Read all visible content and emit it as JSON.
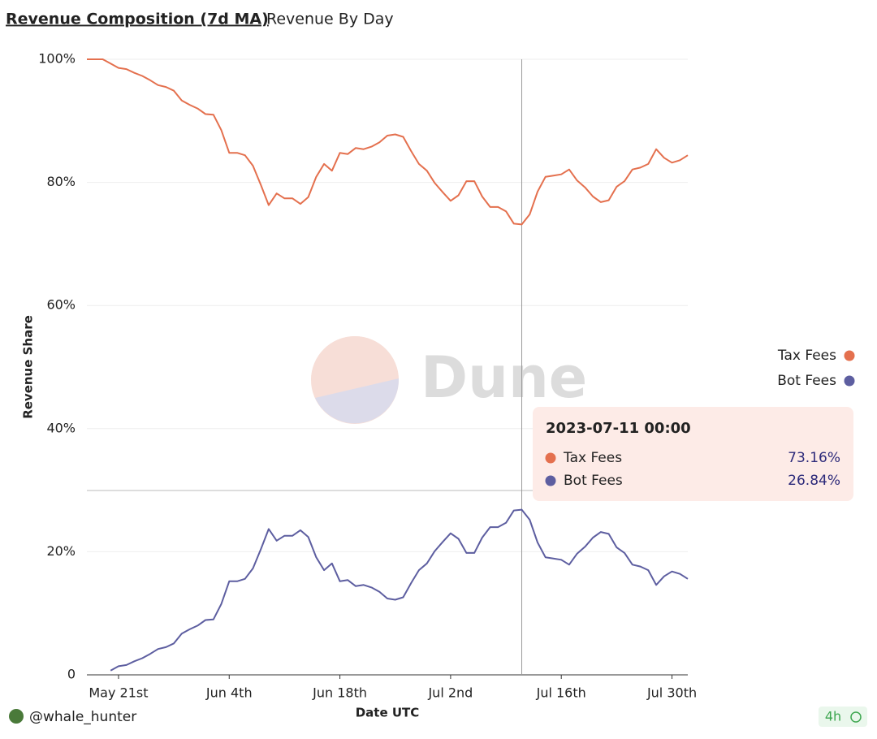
{
  "tabs": [
    "Revenue Composition (7d MA)",
    "Revenue By Day"
  ],
  "chart_data": {
    "type": "line",
    "y_label": "Revenue Share",
    "x_label": "Date UTC",
    "watermark": "Dune",
    "x": [
      "2023-05-17",
      "2023-05-18",
      "2023-05-19",
      "2023-05-20",
      "2023-05-21",
      "2023-05-22",
      "2023-05-23",
      "2023-05-24",
      "2023-05-25",
      "2023-05-26",
      "2023-05-27",
      "2023-05-28",
      "2023-05-29",
      "2023-05-30",
      "2023-05-31",
      "2023-06-01",
      "2023-06-02",
      "2023-06-03",
      "2023-06-04",
      "2023-06-05",
      "2023-06-06",
      "2023-06-07",
      "2023-06-08",
      "2023-06-09",
      "2023-06-10",
      "2023-06-11",
      "2023-06-12",
      "2023-06-13",
      "2023-06-14",
      "2023-06-15",
      "2023-06-16",
      "2023-06-17",
      "2023-06-18",
      "2023-06-19",
      "2023-06-20",
      "2023-06-21",
      "2023-06-22",
      "2023-06-23",
      "2023-06-24",
      "2023-06-25",
      "2023-06-26",
      "2023-06-27",
      "2023-06-28",
      "2023-06-29",
      "2023-06-30",
      "2023-07-01",
      "2023-07-02",
      "2023-07-03",
      "2023-07-04",
      "2023-07-05",
      "2023-07-06",
      "2023-07-07",
      "2023-07-08",
      "2023-07-09",
      "2023-07-10",
      "2023-07-11",
      "2023-07-12",
      "2023-07-13",
      "2023-07-14",
      "2023-07-15",
      "2023-07-16",
      "2023-07-17",
      "2023-07-18",
      "2023-07-19",
      "2023-07-20",
      "2023-07-21",
      "2023-07-22",
      "2023-07-23",
      "2023-07-24",
      "2023-07-25",
      "2023-07-26",
      "2023-07-27",
      "2023-07-28",
      "2023-07-29",
      "2023-07-30",
      "2023-07-31",
      "2023-08-01"
    ],
    "series": [
      {
        "name": "Tax Fees",
        "color": "#e4704e",
        "values": [
          100,
          100,
          100,
          99.3,
          98.6,
          98.4,
          97.8,
          97.3,
          96.6,
          95.8,
          95.5,
          94.9,
          93.3,
          92.6,
          92.0,
          91.1,
          91.0,
          88.5,
          84.8,
          84.8,
          84.4,
          82.7,
          79.6,
          76.3,
          78.2,
          77.4,
          77.4,
          76.5,
          77.6,
          80.9,
          83.0,
          81.9,
          84.8,
          84.6,
          85.6,
          85.4,
          85.8,
          86.5,
          87.6,
          87.8,
          87.4,
          85.1,
          83.0,
          81.9,
          79.9,
          78.4,
          77.0,
          77.9,
          80.2,
          80.2,
          77.7,
          76.0,
          76.0,
          75.3,
          73.3,
          73.16,
          74.8,
          78.5,
          80.9,
          81.1,
          81.3,
          82.1,
          80.3,
          79.2,
          77.7,
          76.8,
          77.1,
          79.3,
          80.2,
          82.1,
          82.4,
          83.0,
          85.4,
          84.0,
          83.2,
          83.6,
          84.4
        ]
      },
      {
        "name": "Bot Fees",
        "color": "#5d5ea0",
        "values": [
          null,
          null,
          null,
          0.7,
          1.4,
          1.6,
          2.2,
          2.7,
          3.4,
          4.2,
          4.5,
          5.1,
          6.7,
          7.4,
          8.0,
          8.9,
          9.0,
          11.5,
          15.2,
          15.2,
          15.6,
          17.3,
          20.4,
          23.7,
          21.8,
          22.6,
          22.6,
          23.5,
          22.4,
          19.1,
          17.0,
          18.1,
          15.2,
          15.4,
          14.4,
          14.6,
          14.2,
          13.5,
          12.4,
          12.2,
          12.6,
          14.9,
          17.0,
          18.1,
          20.1,
          21.6,
          23.0,
          22.1,
          19.8,
          19.8,
          22.3,
          24.0,
          24.0,
          24.7,
          26.7,
          26.84,
          25.2,
          21.5,
          19.1,
          18.9,
          18.7,
          17.9,
          19.7,
          20.8,
          22.3,
          23.2,
          22.9,
          20.7,
          19.8,
          17.9,
          17.6,
          17.0,
          14.6,
          16.0,
          16.8,
          16.4,
          15.6
        ]
      }
    ],
    "xlim": [
      "2023-05-17",
      "2023-08-01"
    ],
    "xticks": [
      {
        "value": "2023-05-21",
        "label": "May 21st"
      },
      {
        "value": "2023-06-04",
        "label": "Jun 4th"
      },
      {
        "value": "2023-06-18",
        "label": "Jun 18th"
      },
      {
        "value": "2023-07-02",
        "label": "Jul 2nd"
      },
      {
        "value": "2023-07-16",
        "label": "Jul 16th"
      },
      {
        "value": "2023-07-30",
        "label": "Jul 30th"
      }
    ],
    "ylim": [
      0,
      100
    ],
    "yticks": [
      0,
      {
        "value": 20,
        "label": "20%"
      },
      {
        "value": 40,
        "label": "40%"
      },
      {
        "value": 60,
        "label": "60%"
      },
      {
        "value": 80,
        "label": "80%"
      },
      {
        "value": 100,
        "label": "100%"
      }
    ],
    "grid": true,
    "legend": "right",
    "tooltip": {
      "x": "2023-07-11",
      "title": "2023-07-11 00:00",
      "value_labels": [
        "73.16%",
        "26.84%"
      ]
    }
  },
  "footer": {
    "author": "@whale_hunter",
    "age": "4h"
  }
}
